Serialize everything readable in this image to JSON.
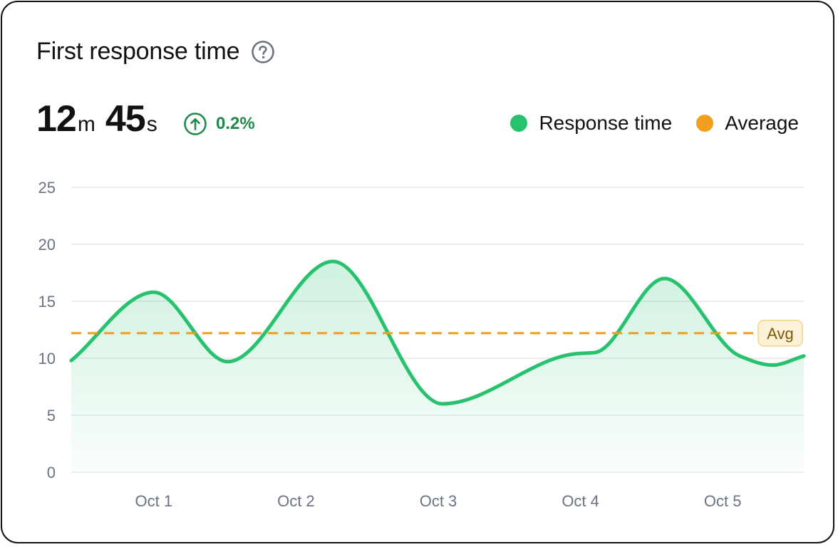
{
  "header": {
    "title": "First response time",
    "help_icon": "question-circle-icon"
  },
  "metric": {
    "minutes": "12",
    "minutes_unit": "m",
    "seconds": "45",
    "seconds_unit": "s",
    "change": "0.2%",
    "change_icon": "arrow-up-circle-icon",
    "change_color": "#1f8a4c"
  },
  "legend": [
    {
      "label": "Response time",
      "color": "#26c26e"
    },
    {
      "label": "Average",
      "color": "#f0a01e"
    }
  ],
  "chart_data": {
    "type": "area",
    "x": [
      "Oct 1",
      "Oct 2",
      "Oct 3",
      "Oct 4",
      "Oct 5"
    ],
    "ylim": [
      0,
      25
    ],
    "yticks": [
      0,
      5,
      10,
      15,
      20,
      25
    ],
    "grid": true,
    "legend_position": "top-right",
    "series": [
      {
        "name": "Response time",
        "color": "#26c26e",
        "points": [
          [
            0.42,
            9.8
          ],
          [
            1.0,
            15.8
          ],
          [
            1.52,
            9.7
          ],
          [
            2.26,
            18.5
          ],
          [
            3.03,
            6.0
          ],
          [
            3.97,
            10.4
          ],
          [
            4.1,
            10.5
          ],
          [
            4.59,
            17.0
          ],
          [
            5.12,
            10.2
          ],
          [
            5.35,
            9.4
          ],
          [
            5.57,
            10.2
          ]
        ]
      }
    ],
    "average": {
      "value": 12.2,
      "label": "Avg",
      "color": "#f0a01e"
    }
  }
}
